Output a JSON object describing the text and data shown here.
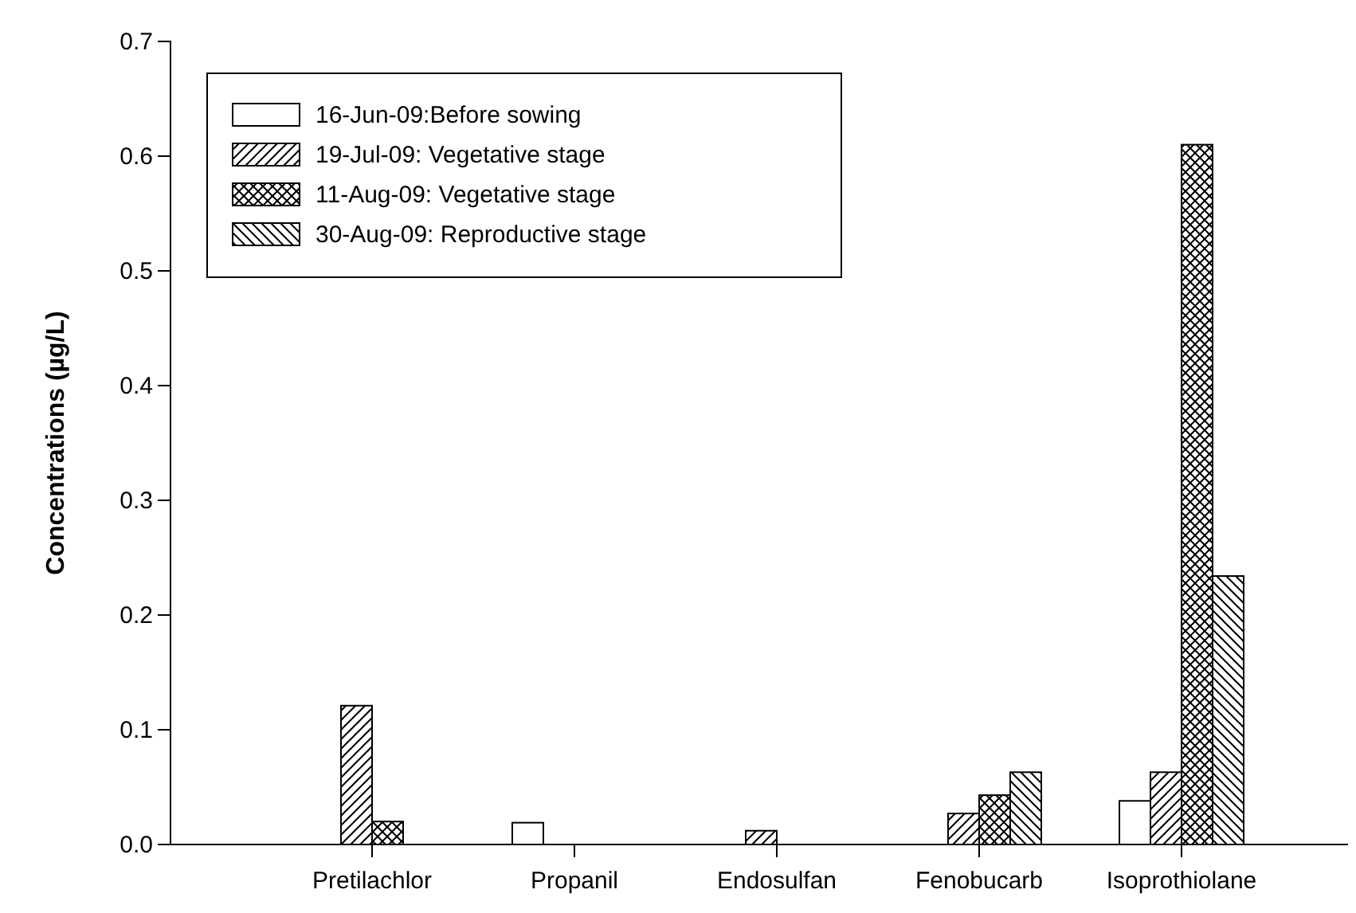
{
  "chart_data": {
    "type": "bar",
    "ylabel": "Concentrations (µg/L)",
    "categories": [
      "Pretilachlor",
      "Propanil",
      "Endosulfan",
      "Fenobucarb",
      "Isoprothiolane"
    ],
    "series": [
      {
        "name": "16-Jun-09:Before sowing",
        "color": "#000000",
        "values": [
          null,
          0.019,
          null,
          null,
          0.038
        ]
      },
      {
        "name": "19-Jul-09: Vegetative stage",
        "color": "#000000",
        "values": [
          0.121,
          null,
          0.012,
          0.027,
          0.063
        ]
      },
      {
        "name": "11-Aug-09: Vegetative stage",
        "color": "#000000",
        "values": [
          0.02,
          null,
          null,
          0.043,
          0.61
        ]
      },
      {
        "name": "30-Aug-09: Reproductive stage",
        "color": "#000000",
        "values": [
          null,
          null,
          null,
          0.063,
          0.234
        ]
      }
    ],
    "ylim": [
      0,
      0.7
    ],
    "yticks": [
      {
        "value": 0,
        "label": "0.0"
      },
      0.1,
      0.2,
      0.3,
      0.4,
      0.5,
      0.6,
      0.7
    ],
    "grid": false,
    "legend": "top left"
  }
}
